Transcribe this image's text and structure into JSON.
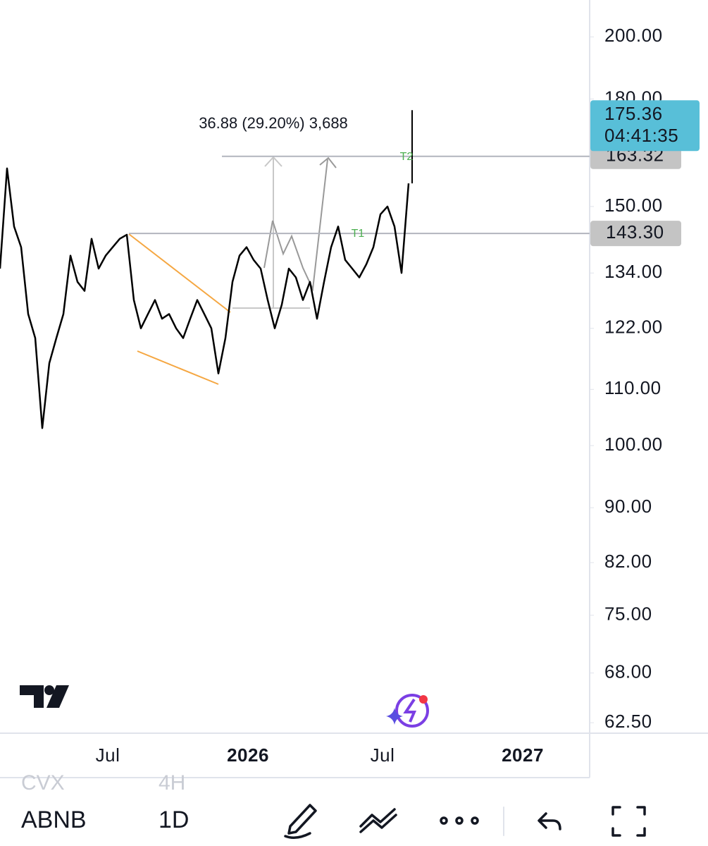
{
  "chart_data": {
    "type": "line",
    "y_scale": "log",
    "color": "#000000",
    "ylim": [
      61.4,
      212.9
    ],
    "yticks": [
      {
        "value": 200,
        "label": "200.00"
      },
      {
        "value": 180,
        "label": "180.00"
      },
      {
        "value": 150,
        "label": "150.00"
      },
      {
        "value": 134,
        "label": "134.00"
      },
      {
        "value": 122,
        "label": "122.00"
      },
      {
        "value": 110,
        "label": "110.00"
      },
      {
        "value": 100,
        "label": "100.00"
      },
      {
        "value": 90,
        "label": "90.00"
      },
      {
        "value": 82,
        "label": "82.00"
      },
      {
        "value": 75,
        "label": "75.00"
      },
      {
        "value": 68,
        "label": "68.00"
      },
      {
        "value": 62.5,
        "label": "62.50"
      }
    ],
    "x_labels": [
      "Jul",
      "2026",
      "Jul",
      "2027"
    ],
    "values": [
      135,
      160,
      145,
      140,
      125,
      120,
      103,
      115,
      120,
      125,
      138,
      132,
      130,
      142,
      135,
      138,
      140,
      142,
      143,
      128,
      122,
      125,
      128,
      124,
      125,
      122,
      120,
      124,
      128,
      125,
      122,
      113,
      120,
      132,
      138,
      140,
      137,
      135,
      128,
      122,
      127,
      135,
      133,
      128,
      132,
      124,
      132,
      140,
      145,
      137,
      135,
      133,
      136,
      140,
      148,
      150,
      145,
      134,
      156
    ],
    "measure_label": "36.88 (29.20%) 3,688",
    "targets": [
      "T1",
      "T2"
    ],
    "levels": [
      {
        "value": 163.32,
        "label": "163.32"
      },
      {
        "value": 143.3,
        "label": "143.30"
      }
    ],
    "last_price": 175.36,
    "countdown": "04:41:35"
  },
  "toolbar": {
    "symbols": [
      "CVX",
      "ABNB"
    ],
    "intervals": [
      "4H",
      "1D"
    ]
  }
}
